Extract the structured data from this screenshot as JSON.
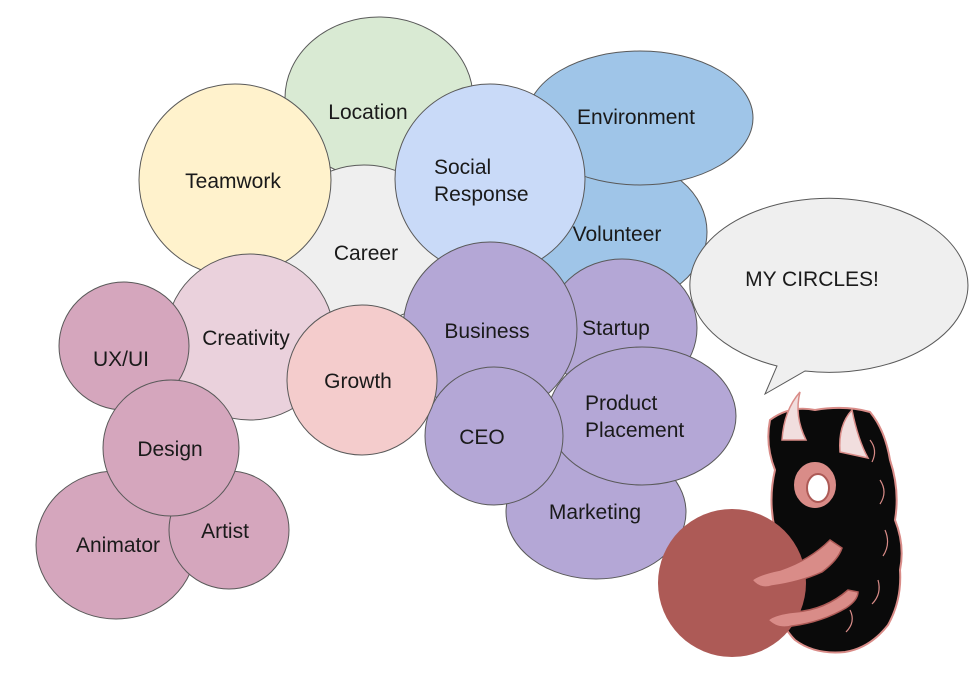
{
  "colors": {
    "green": "#d9ead3",
    "blue": "#9fc5e8",
    "light_blue": "#c9daf8",
    "yellow": "#fff2cc",
    "gray": "#efefef",
    "purple": "#b4a7d6",
    "pink": "#ead1dc",
    "salmon": "#f4cccc",
    "rose": "#d5a6bd",
    "ball": "#ad5a56",
    "monster": "#0a0a0a",
    "monster_accent": "#d98c88"
  },
  "circles": [
    {
      "id": "location",
      "label": "Location",
      "color": "green"
    },
    {
      "id": "volunteer",
      "label": "Volunteer",
      "color": "blue"
    },
    {
      "id": "environment",
      "label": "Environment",
      "color": "blue"
    },
    {
      "id": "career",
      "label": "Career",
      "color": "gray"
    },
    {
      "id": "teamwork",
      "label": "Teamwork",
      "color": "yellow"
    },
    {
      "id": "social-response",
      "label": "Social Response",
      "color": "light_blue"
    },
    {
      "id": "marketing",
      "label": "Marketing",
      "color": "purple"
    },
    {
      "id": "startup",
      "label": "Startup",
      "color": "purple"
    },
    {
      "id": "business",
      "label": "Business",
      "color": "purple"
    },
    {
      "id": "product-placement",
      "label": "Product Placement",
      "color": "purple"
    },
    {
      "id": "ceo",
      "label": "CEO",
      "color": "purple"
    },
    {
      "id": "creativity",
      "label": "Creativity",
      "color": "pink"
    },
    {
      "id": "growth",
      "label": "Growth",
      "color": "salmon"
    },
    {
      "id": "ux-ui",
      "label": "UX/UI",
      "color": "rose"
    },
    {
      "id": "animator",
      "label": "Animator",
      "color": "rose"
    },
    {
      "id": "artist",
      "label": "Artist",
      "color": "rose"
    },
    {
      "id": "design",
      "label": "Design",
      "color": "rose"
    }
  ],
  "speech_bubble": {
    "text": "MY CIRCLES!"
  }
}
